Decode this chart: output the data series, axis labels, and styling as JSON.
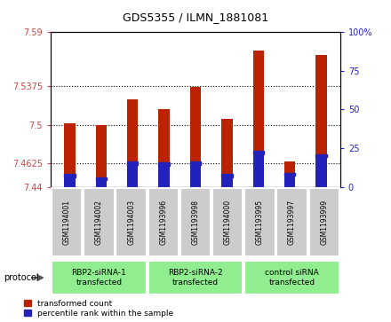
{
  "title": "GDS5355 / ILMN_1881081",
  "samples": [
    "GSM1194001",
    "GSM1194002",
    "GSM1194003",
    "GSM1193996",
    "GSM1193998",
    "GSM1194000",
    "GSM1193995",
    "GSM1193997",
    "GSM1193999"
  ],
  "groups": [
    {
      "label": "RBP2-siRNA-1\ntransfected",
      "count": 3,
      "color": "#90EE90"
    },
    {
      "label": "RBP2-siRNA-2\ntransfected",
      "count": 3,
      "color": "#90EE90"
    },
    {
      "label": "control siRNA\ntransfected",
      "count": 3,
      "color": "#90EE90"
    }
  ],
  "red_values": [
    7.502,
    7.5,
    7.525,
    7.515,
    7.537,
    7.506,
    7.572,
    7.465,
    7.568
  ],
  "blue_values": [
    7.451,
    7.448,
    7.463,
    7.462,
    7.463,
    7.451,
    7.473,
    7.452,
    7.47
  ],
  "ylim": [
    7.44,
    7.59
  ],
  "yticks_left": [
    7.44,
    7.4625,
    7.5,
    7.5375,
    7.59
  ],
  "ytick_labels_left": [
    "7.44",
    "7.4625",
    "7.5",
    "7.5375",
    "7.59"
  ],
  "yticks_right_pct": [
    0,
    25,
    50,
    75,
    100
  ],
  "ytick_labels_right": [
    "0",
    "25",
    "50",
    "75",
    "100%"
  ],
  "bar_width": 0.35,
  "red_color": "#BB2200",
  "blue_color": "#2222BB",
  "bar_bottom": 7.44,
  "protocol_label": "protocol",
  "legend_red": "transformed count",
  "legend_blue": "percentile rank within the sample",
  "left_tick_color": "#CC4444",
  "right_tick_color": "#2222BB",
  "grey_bg": "#CCCCCC",
  "green_bg": "#90EE90",
  "dotted_grid_ticks": [
    7.4625,
    7.5,
    7.5375
  ]
}
